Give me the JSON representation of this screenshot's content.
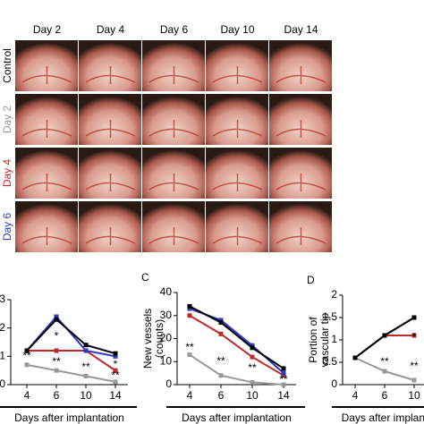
{
  "photo_grid": {
    "columns": [
      "Day 2",
      "Day 4",
      "Day 6",
      "Day 10",
      "Day 14"
    ],
    "rows": [
      {
        "label": "Control",
        "color": "#000000"
      },
      {
        "label": "Day 2",
        "color": "#9a9a9a"
      },
      {
        "label": "Day 4",
        "color": "#c0282a"
      },
      {
        "label": "Day 6",
        "color": "#2b3bbf"
      }
    ]
  },
  "chart_data": [
    {
      "type": "line",
      "categories": [
        "4",
        "6",
        "10",
        "14"
      ],
      "x_label": "Days after implantation",
      "ylim": [
        0,
        3
      ],
      "yticks": [
        0,
        1,
        2,
        3
      ],
      "series": [
        {
          "color": "#999999",
          "values": [
            0.7,
            0.5,
            0.3,
            0.1
          ]
        },
        {
          "color": "#c0282a",
          "values": [
            1.2,
            1.2,
            1.2,
            0.5
          ]
        },
        {
          "color": "#2b3bbf",
          "values": [
            1.2,
            2.4,
            1.2,
            1.0
          ]
        },
        {
          "color": "#000000",
          "values": [
            1.2,
            2.3,
            1.4,
            1.1
          ]
        }
      ],
      "annotations": [
        {
          "text": "**",
          "x": "4",
          "y": 1.0
        },
        {
          "text": "*",
          "x": "6",
          "y": 1.7
        },
        {
          "text": "**",
          "x": "6",
          "y": 0.8
        },
        {
          "text": "**",
          "x": "10",
          "y": 0.6
        },
        {
          "text": "*",
          "x": "14",
          "y": 0.7
        },
        {
          "text": "**",
          "x": "14",
          "y": 0.3
        }
      ]
    },
    {
      "type": "line",
      "panel": "C",
      "categories": [
        "4",
        "6",
        "10",
        "14"
      ],
      "x_label": "Days after implantation",
      "y_label": [
        "New vessels",
        "(counts)"
      ],
      "ylim": [
        0,
        40
      ],
      "yticks": [
        0,
        10,
        20,
        30,
        40
      ],
      "series": [
        {
          "color": "#999999",
          "values": [
            13,
            4,
            1,
            0
          ]
        },
        {
          "color": "#c0282a",
          "values": [
            30,
            22,
            12,
            4
          ]
        },
        {
          "color": "#2b3bbf",
          "values": [
            33,
            28,
            17,
            5
          ]
        },
        {
          "color": "#000000",
          "values": [
            34,
            27,
            16,
            7
          ]
        }
      ],
      "annotations": [
        {
          "text": "**",
          "x": "4",
          "y": 16
        },
        {
          "text": "**",
          "x": "6",
          "y": 10
        },
        {
          "text": "**",
          "x": "10",
          "y": 7
        },
        {
          "text": "*",
          "x": "14",
          "y": 6
        },
        {
          "text": "**",
          "x": "14",
          "y": 2
        }
      ]
    },
    {
      "type": "line",
      "panel": "D",
      "categories": [
        "4",
        "6",
        "10"
      ],
      "x_label": "Days after implant",
      "y_label": [
        "Portion of",
        "vascular tip"
      ],
      "ylim": [
        0,
        2
      ],
      "yticks": [
        0,
        0.5,
        1,
        1.5,
        2
      ],
      "series": [
        {
          "color": "#999999",
          "values": [
            0.6,
            0.3,
            0.1
          ]
        },
        {
          "color": "#c0282a",
          "values": [
            0.6,
            1.1,
            1.1
          ]
        },
        {
          "color": "#2b3bbf",
          "values": [
            0.6,
            1.1,
            1.5
          ]
        },
        {
          "color": "#000000",
          "values": [
            0.6,
            1.1,
            1.5
          ]
        }
      ],
      "annotations": [
        {
          "text": "**",
          "x": "6",
          "y": 0.5
        },
        {
          "text": "**",
          "x": "10",
          "y": 0.4
        },
        {
          "text": "*",
          "x": "10",
          "y": 1.05
        }
      ]
    }
  ]
}
